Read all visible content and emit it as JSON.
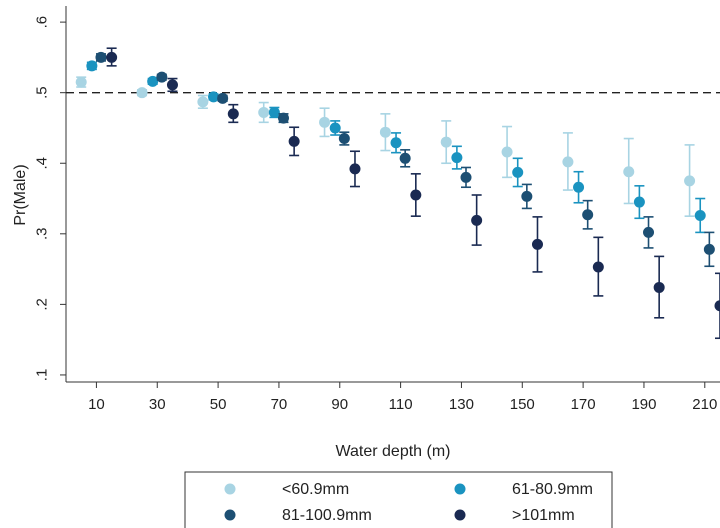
{
  "chart_data": {
    "type": "scatter",
    "xlabel": "Water depth (m)",
    "ylabel": "Pr(Male)",
    "x_ticks": [
      10,
      30,
      50,
      70,
      90,
      110,
      130,
      150,
      170,
      190,
      210
    ],
    "y_ticks": [
      {
        "value": 0.1,
        "label": ".1"
      },
      {
        "value": 0.2,
        "label": ".2"
      },
      {
        "value": 0.3,
        "label": ".3"
      },
      {
        "value": 0.4,
        "label": ".4"
      },
      {
        "value": 0.5,
        "label": ".5"
      },
      {
        "value": 0.6,
        "label": ".6"
      }
    ],
    "xlim": [
      0,
      215
    ],
    "ylim": [
      0.09,
      0.62
    ],
    "reference_line": {
      "y": 0.5,
      "style": "dashed"
    },
    "grid": false,
    "legend_position": "bottom",
    "series": [
      {
        "name": "<60.9mm",
        "color": "#a8d4e3",
        "x": [
          5,
          25,
          45,
          65,
          85,
          105,
          125,
          145,
          165,
          185,
          205
        ],
        "y": [
          0.515,
          0.5,
          0.487,
          0.472,
          0.458,
          0.444,
          0.43,
          0.416,
          0.402,
          0.388,
          0.375
        ],
        "ci_low": [
          0.508,
          0.496,
          0.478,
          0.458,
          0.438,
          0.418,
          0.4,
          0.38,
          0.362,
          0.343,
          0.325
        ],
        "ci_high": [
          0.522,
          0.504,
          0.496,
          0.486,
          0.478,
          0.47,
          0.46,
          0.452,
          0.443,
          0.435,
          0.426
        ]
      },
      {
        "name": "61-80.9mm",
        "color": "#1a93c0",
        "x": [
          8.5,
          28.5,
          48.5,
          68.5,
          88.5,
          108.5,
          128.5,
          148.5,
          168.5,
          188.5,
          208.5
        ],
        "y": [
          0.538,
          0.516,
          0.494,
          0.472,
          0.45,
          0.429,
          0.408,
          0.387,
          0.366,
          0.345,
          0.326
        ],
        "ci_low": [
          0.533,
          0.512,
          0.49,
          0.465,
          0.44,
          0.415,
          0.392,
          0.367,
          0.344,
          0.322,
          0.302
        ],
        "ci_high": [
          0.543,
          0.52,
          0.498,
          0.479,
          0.46,
          0.443,
          0.424,
          0.407,
          0.388,
          0.368,
          0.35
        ]
      },
      {
        "name": "81-100.9mm",
        "color": "#1d4f73",
        "x": [
          11.5,
          31.5,
          51.5,
          71.5,
          91.5,
          111.5,
          131.5,
          151.5,
          171.5,
          191.5,
          211.5
        ],
        "y": [
          0.55,
          0.522,
          0.492,
          0.464,
          0.435,
          0.407,
          0.38,
          0.353,
          0.327,
          0.302,
          0.278
        ],
        "ci_low": [
          0.545,
          0.518,
          0.488,
          0.458,
          0.426,
          0.395,
          0.366,
          0.336,
          0.307,
          0.28,
          0.254
        ],
        "ci_high": [
          0.555,
          0.526,
          0.496,
          0.47,
          0.444,
          0.419,
          0.394,
          0.37,
          0.347,
          0.324,
          0.302
        ]
      },
      {
        "name": ">101mm",
        "color": "#1a2a52",
        "x": [
          15,
          35,
          55,
          75,
          95,
          115,
          135,
          155,
          175,
          195,
          215
        ],
        "y": [
          0.55,
          0.511,
          0.47,
          0.431,
          0.392,
          0.355,
          0.319,
          0.285,
          0.253,
          0.224,
          0.198
        ],
        "ci_low": [
          0.538,
          0.502,
          0.458,
          0.411,
          0.367,
          0.325,
          0.284,
          0.246,
          0.212,
          0.181,
          0.152
        ],
        "ci_high": [
          0.563,
          0.52,
          0.483,
          0.451,
          0.417,
          0.385,
          0.355,
          0.324,
          0.295,
          0.268,
          0.244
        ]
      }
    ]
  }
}
